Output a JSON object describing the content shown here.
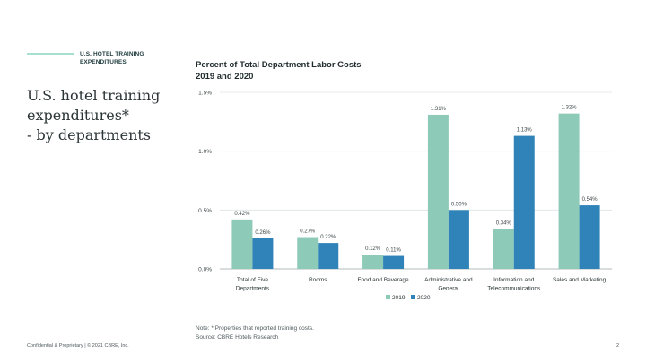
{
  "header": {
    "section_line1": "U.S. HOTEL TRAINING",
    "section_line2": "EXPENDITURES",
    "title_line1": "U.S. hotel training",
    "title_line2": "expenditures*",
    "title_line3": "- by departments"
  },
  "colors": {
    "series_2019": "#8ecab8",
    "series_2020": "#2f83b8",
    "accent": "#a7dfd0"
  },
  "chart_data": {
    "type": "bar",
    "title_line1": "Percent of Total Department Labor Costs",
    "title_line2": "2019 and 2020",
    "categories": [
      [
        "Total of Five",
        "Departments"
      ],
      [
        "Rooms"
      ],
      [
        "Food and Beverage"
      ],
      [
        "Administrative and",
        "General"
      ],
      [
        "Information and",
        "Telecommunications"
      ],
      [
        "Sales and Marketing"
      ]
    ],
    "series": [
      {
        "name": "2019",
        "values": [
          0.42,
          0.27,
          0.12,
          1.31,
          0.34,
          1.32
        ],
        "labels": [
          "0.42%",
          "0.27%",
          "0.12%",
          "1.31%",
          "0.34%",
          "1.32%"
        ]
      },
      {
        "name": "2020",
        "values": [
          0.26,
          0.22,
          0.11,
          0.5,
          1.13,
          0.54
        ],
        "labels": [
          "0.26%",
          "0.22%",
          "0.11%",
          "0.50%",
          "1.13%",
          "0.54%"
        ]
      }
    ],
    "yticks": [
      0,
      0.5,
      1.0,
      1.5
    ],
    "ytick_labels": [
      "0.0%",
      "0.5%",
      "1.0%",
      "1.5%"
    ],
    "ylim": [
      0,
      1.5
    ],
    "xlabel": "",
    "ylabel": "",
    "legend": "bottom-center",
    "grid": true
  },
  "notes": {
    "note": "Note: * Properties that reported training costs.",
    "source": "Source: CBRE Hotels Research"
  },
  "footer": {
    "left": "Confidential & Proprietary | © 2021 CBRE, Inc.",
    "page_number": "2"
  }
}
